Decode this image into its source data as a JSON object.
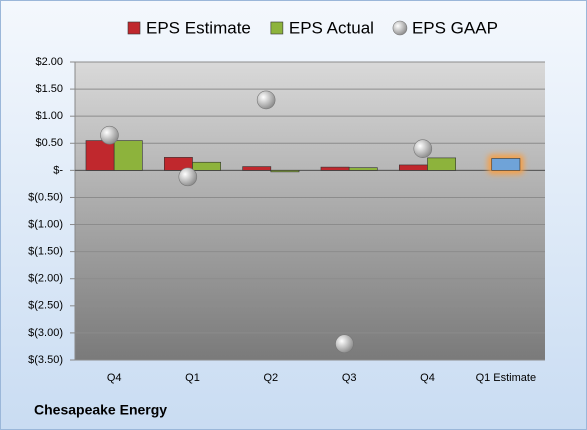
{
  "chart_data": {
    "type": "bar",
    "footer": "Chesapeake Energy",
    "categories": [
      "Q4",
      "Q1",
      "Q2",
      "Q3",
      "Q4",
      "Q1 Estimate"
    ],
    "series": [
      {
        "name": "EPS Estimate",
        "color": "#c0282d",
        "values": [
          0.55,
          0.24,
          0.07,
          0.06,
          0.1,
          0.22
        ],
        "highlight_color": "#6fa3d8",
        "highlight_glow": "#f5a04a"
      },
      {
        "name": "EPS Actual",
        "color": "#8db33c",
        "values": [
          0.55,
          0.15,
          -0.02,
          0.05,
          0.23,
          null
        ]
      },
      {
        "name": "EPS GAAP",
        "type": "scatter",
        "color": "#a8a8a8",
        "values": [
          0.65,
          -0.12,
          1.3,
          -3.2,
          0.4,
          null
        ]
      }
    ],
    "ylim": [
      -3.5,
      2.0
    ],
    "yticks": [
      {
        "value": 2.0,
        "label": "$2.00"
      },
      {
        "value": 1.5,
        "label": "$1.50"
      },
      {
        "value": 1.0,
        "label": "$1.00"
      },
      {
        "value": 0.5,
        "label": "$0.50"
      },
      {
        "value": 0,
        "label": "$-"
      },
      {
        "value": -0.5,
        "label": "$(0.50)"
      },
      {
        "value": -1.0,
        "label": "$(1.00)"
      },
      {
        "value": -1.5,
        "label": "$(1.50)"
      },
      {
        "value": -2.0,
        "label": "$(2.00)"
      },
      {
        "value": -2.5,
        "label": "$(2.50)"
      },
      {
        "value": -3.0,
        "label": "$(3.00)"
      },
      {
        "value": -3.5,
        "label": "$(3.50)"
      }
    ],
    "grid": true,
    "legend": "top"
  }
}
